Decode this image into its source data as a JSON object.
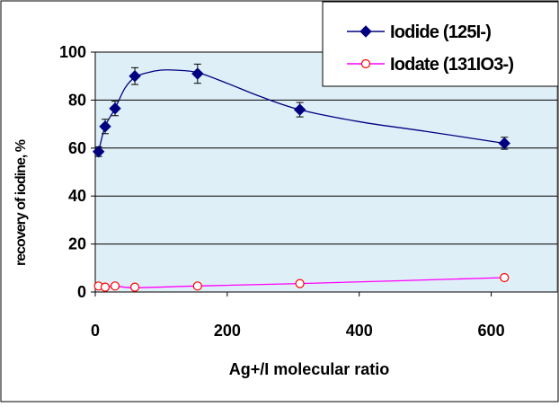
{
  "chart_data": {
    "type": "scatter",
    "xlabel": "Ag+/I molecular ratio",
    "ylabel": "recovery of iodine, %",
    "xlim": [
      0,
      700
    ],
    "ylim": [
      0,
      100
    ],
    "xticks": [
      0,
      200,
      400,
      600
    ],
    "yticks": [
      0,
      20,
      40,
      60,
      80,
      100
    ],
    "grid": "horizontal",
    "legend_position": "top-right",
    "colors": {
      "plot_background": "#dfeff7",
      "gridline": "#000000"
    },
    "series": [
      {
        "name": "Iodide (125I-)",
        "color": "#000080",
        "marker": "filled-diamond",
        "x": [
          5,
          15,
          30,
          60,
          155,
          310,
          620
        ],
        "y": [
          58.5,
          69,
          76.5,
          90,
          91,
          76,
          62
        ],
        "error": [
          2,
          3,
          3,
          3.5,
          4,
          3,
          2.5
        ],
        "trend": {
          "x": [
            5,
            15,
            30,
            45,
            60,
            80,
            100,
            120,
            155,
            200,
            250,
            310,
            400,
            500,
            620
          ],
          "y": [
            58.5,
            69,
            76.5,
            85,
            89.5,
            91.5,
            92.5,
            92.5,
            91.5,
            87,
            81.5,
            76,
            71,
            67,
            62
          ]
        }
      },
      {
        "name": "Iodate (131IO3-)",
        "color": "#ff00ff",
        "marker": "open-circle",
        "marker_color": "#ff0000",
        "x": [
          5,
          15,
          30,
          60,
          155,
          310,
          620
        ],
        "y": [
          2.5,
          2,
          2.5,
          2,
          2.5,
          3.5,
          6
        ],
        "trend": {
          "x": [
            5,
            15,
            30,
            60,
            155,
            310,
            620
          ],
          "y": [
            2.5,
            2,
            2.5,
            1.8,
            2.5,
            3.5,
            6
          ]
        }
      }
    ]
  }
}
